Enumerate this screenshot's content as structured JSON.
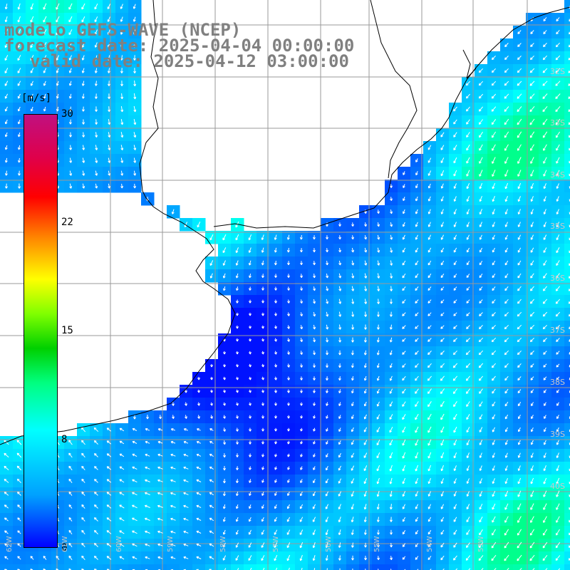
{
  "title": {
    "line1": "modelo GEFS-WAVE (NCEP)",
    "line2": "forecast date: 2025-04-04 00:00:00",
    "line3": "valid date: 2025-04-12 03:00:00"
  },
  "colorbar": {
    "units": "[m/s]",
    "ticks": [
      "30",
      "22",
      "15",
      "8",
      "0"
    ],
    "tick_values": [
      30,
      22,
      15,
      8,
      0
    ],
    "range": [
      0,
      30
    ]
  },
  "lat_labels": [
    "32S",
    "33S",
    "34S",
    "35S",
    "36S",
    "37S",
    "38S",
    "39S",
    "40S"
  ],
  "lon_labels": [
    "62W",
    "61W",
    "60W",
    "59W",
    "58W",
    "57W",
    "56W",
    "55W",
    "54W",
    "53W"
  ],
  "colors": {
    "land": "#ffffff",
    "grid": "#9a9a9a",
    "coast": "#000000",
    "arrow": "#ffffff"
  }
}
